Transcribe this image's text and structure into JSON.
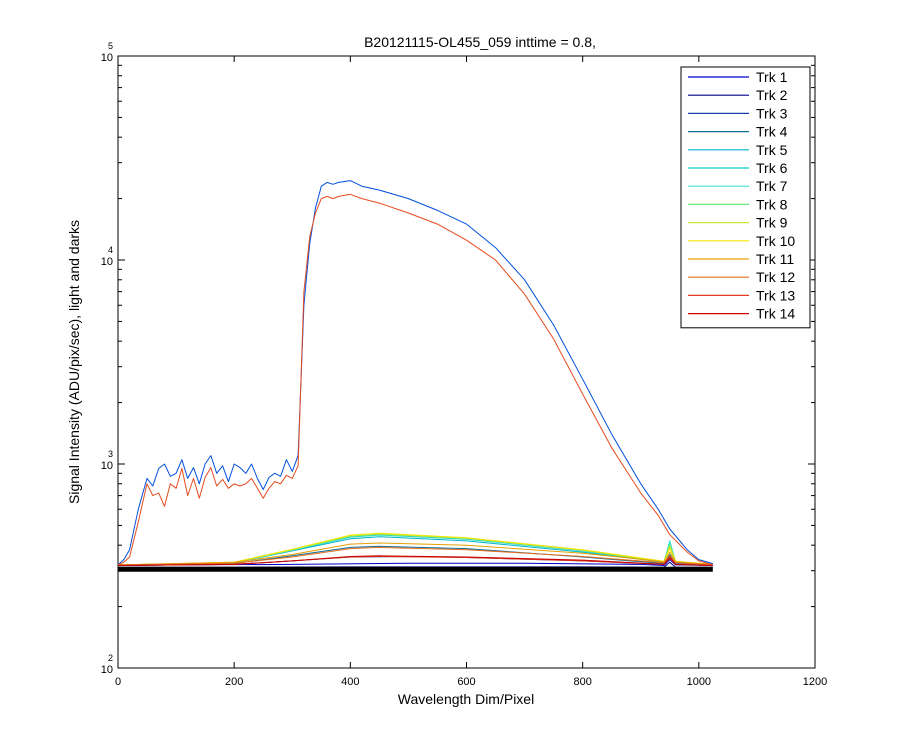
{
  "chart_data": {
    "type": "line",
    "title": "B20121115-OL455_059 inttime = 0.8,",
    "xlabel": "Wavelength Dim/Pixel",
    "ylabel": "Signal Intensity (ADU/pix/sec), light and darks",
    "xlim": [
      0,
      1200
    ],
    "ylim": [
      100,
      100000
    ],
    "yscale": "log",
    "xticks": [
      0,
      200,
      400,
      600,
      800,
      1000,
      1200
    ],
    "xtick_labels": [
      "0",
      "200",
      "400",
      "600",
      "800",
      "1000",
      "1200"
    ],
    "yticks": [
      {
        "value": 100,
        "base": "10",
        "exp": "2"
      },
      {
        "value": 1000,
        "base": "10",
        "exp": "3"
      },
      {
        "value": 10000,
        "base": "10",
        "exp": "4"
      },
      {
        "value": 100000,
        "base": "10",
        "exp": "5"
      }
    ],
    "grid": false,
    "legend_position": "top-right",
    "series": [
      {
        "name": "Trk 1",
        "color": "#0000cc",
        "x": [
          0,
          20,
          100,
          300,
          500,
          700,
          900,
          940,
          950,
          960,
          1024
        ],
        "y": [
          320,
          318,
          320,
          322,
          326,
          326,
          322,
          318,
          340,
          320,
          318
        ]
      },
      {
        "name": "Trk 2",
        "color": "#00008b",
        "x": [
          0,
          200,
          400,
          600,
          800,
          940,
          950,
          960,
          1024
        ],
        "y": [
          312,
          312,
          313,
          313,
          313,
          312,
          330,
          312,
          312
        ]
      },
      {
        "name": "Trk 3",
        "color": "#1a3ea8",
        "x": [
          0,
          200,
          300,
          400,
          500,
          600,
          800,
          940,
          950,
          960,
          1024
        ],
        "y": [
          318,
          322,
          335,
          350,
          352,
          348,
          335,
          322,
          345,
          322,
          318
        ]
      },
      {
        "name": "Trk 4",
        "color": "#0f6e96",
        "x": [
          0,
          200,
          300,
          400,
          450,
          600,
          800,
          940,
          950,
          960,
          1024
        ],
        "y": [
          320,
          325,
          355,
          390,
          395,
          385,
          350,
          325,
          360,
          325,
          320
        ]
      },
      {
        "name": "Trk 5",
        "color": "#00b4c8",
        "x": [
          0,
          200,
          300,
          400,
          450,
          600,
          800,
          940,
          950,
          960,
          1024
        ],
        "y": [
          320,
          328,
          375,
          430,
          440,
          420,
          370,
          330,
          400,
          330,
          322
        ]
      },
      {
        "name": "Trk 6",
        "color": "#00d2c8",
        "x": [
          0,
          200,
          300,
          400,
          450,
          600,
          800,
          940,
          950,
          960,
          1024
        ],
        "y": [
          320,
          328,
          378,
          438,
          448,
          428,
          375,
          330,
          420,
          330,
          322
        ]
      },
      {
        "name": "Trk 7",
        "color": "#40e0d0",
        "x": [
          0,
          200,
          300,
          400,
          450,
          600,
          800,
          940,
          950,
          960,
          1024
        ],
        "y": [
          320,
          328,
          378,
          440,
          450,
          430,
          376,
          332,
          415,
          332,
          322
        ]
      },
      {
        "name": "Trk 8",
        "color": "#66e67a",
        "x": [
          0,
          200,
          300,
          400,
          450,
          600,
          800,
          940,
          950,
          960,
          1024
        ],
        "y": [
          320,
          330,
          380,
          442,
          452,
          432,
          378,
          332,
          405,
          332,
          322
        ]
      },
      {
        "name": "Trk 9",
        "color": "#c8e632",
        "x": [
          0,
          200,
          300,
          400,
          450,
          600,
          800,
          940,
          950,
          960,
          1024
        ],
        "y": [
          320,
          330,
          380,
          445,
          455,
          433,
          378,
          332,
          395,
          332,
          322
        ]
      },
      {
        "name": "Trk 10",
        "color": "#f0e600",
        "x": [
          0,
          200,
          300,
          400,
          450,
          600,
          800,
          940,
          950,
          960,
          1024
        ],
        "y": [
          320,
          330,
          382,
          448,
          458,
          435,
          380,
          334,
          385,
          334,
          322
        ]
      },
      {
        "name": "Trk 11",
        "color": "#e6a000",
        "x": [
          0,
          200,
          300,
          400,
          450,
          600,
          800,
          940,
          950,
          960,
          1024
        ],
        "y": [
          320,
          330,
          360,
          405,
          410,
          400,
          365,
          332,
          370,
          332,
          322
        ]
      },
      {
        "name": "Trk 12",
        "color": "#e66e1e",
        "x": [
          0,
          200,
          300,
          400,
          450,
          600,
          800,
          940,
          950,
          960,
          1024
        ],
        "y": [
          320,
          326,
          350,
          385,
          390,
          380,
          352,
          328,
          355,
          328,
          320
        ]
      },
      {
        "name": "Trk 13",
        "color": "#e63c1e",
        "x": [
          0,
          200,
          300,
          400,
          450,
          600,
          800,
          940,
          950,
          960,
          1024
        ],
        "y": [
          318,
          322,
          335,
          350,
          352,
          348,
          335,
          322,
          345,
          322,
          318
        ]
      },
      {
        "name": "Trk 14",
        "color": "#c80000",
        "x": [
          0,
          200,
          300,
          400,
          450,
          600,
          800,
          940,
          950,
          960,
          1024
        ],
        "y": [
          318,
          322,
          335,
          352,
          355,
          350,
          338,
          322,
          350,
          322,
          318
        ]
      },
      {
        "name": "",
        "color": "#000000",
        "x": [
          0,
          1024
        ],
        "y": [
          305,
          305
        ]
      },
      {
        "name": "",
        "color": "#0050dc",
        "x": [
          0,
          10,
          20,
          35,
          50,
          60,
          70,
          80,
          90,
          100,
          110,
          120,
          130,
          140,
          150,
          160,
          170,
          180,
          190,
          200,
          210,
          220,
          230,
          240,
          250,
          260,
          270,
          280,
          290,
          300,
          310,
          320,
          330,
          340,
          350,
          360,
          370,
          380,
          400,
          420,
          450,
          500,
          550,
          600,
          650,
          700,
          750,
          800,
          850,
          900,
          930,
          950,
          980,
          1000,
          1024
        ],
        "y": [
          320,
          340,
          380,
          600,
          850,
          780,
          950,
          1000,
          870,
          900,
          1050,
          850,
          960,
          800,
          1000,
          1100,
          900,
          980,
          820,
          1000,
          960,
          900,
          1000,
          850,
          750,
          860,
          900,
          870,
          1050,
          920,
          1100,
          6000,
          12000,
          18000,
          23000,
          24000,
          23500,
          24000,
          24500,
          23000,
          22000,
          20000,
          17500,
          15000,
          11500,
          8000,
          4800,
          2600,
          1400,
          800,
          600,
          480,
          380,
          340,
          325
        ]
      },
      {
        "name": "",
        "color": "#e64b1e",
        "x": [
          0,
          10,
          20,
          35,
          50,
          60,
          70,
          80,
          90,
          100,
          110,
          120,
          130,
          140,
          150,
          160,
          170,
          180,
          190,
          200,
          210,
          220,
          230,
          240,
          250,
          260,
          270,
          280,
          290,
          300,
          310,
          320,
          330,
          340,
          350,
          360,
          370,
          380,
          400,
          420,
          450,
          500,
          550,
          600,
          650,
          700,
          750,
          800,
          850,
          900,
          930,
          950,
          980,
          1000,
          1024
        ],
        "y": [
          320,
          330,
          350,
          520,
          800,
          700,
          720,
          620,
          800,
          760,
          950,
          700,
          850,
          680,
          860,
          960,
          780,
          840,
          760,
          800,
          780,
          800,
          850,
          760,
          680,
          760,
          820,
          800,
          880,
          850,
          980,
          7000,
          13000,
          17000,
          20000,
          20500,
          20000,
          20500,
          21000,
          20000,
          19000,
          17000,
          15000,
          12500,
          10000,
          6800,
          4100,
          2200,
          1200,
          720,
          560,
          450,
          370,
          335,
          320
        ]
      }
    ]
  }
}
